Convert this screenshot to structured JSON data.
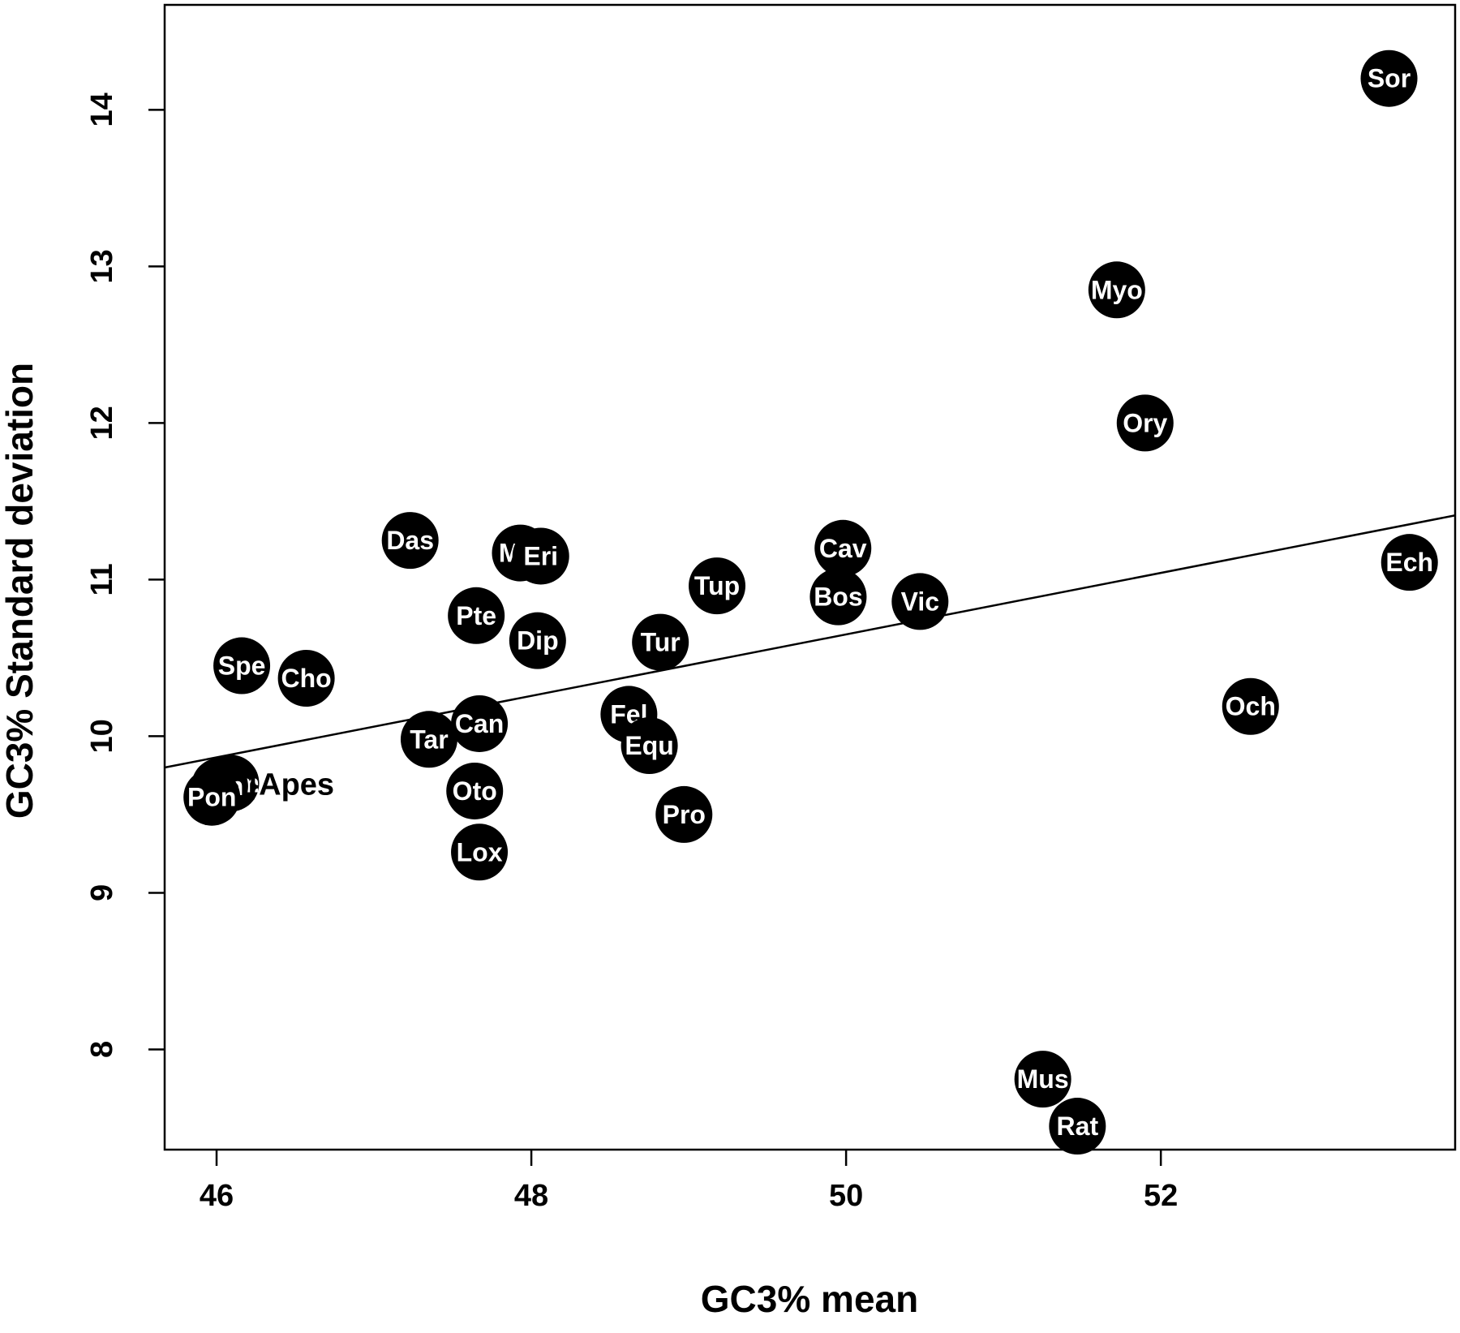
{
  "chart_data": {
    "type": "scatter",
    "title": "",
    "xlabel": "GC3% mean",
    "ylabel": "GC3% Standard deviation",
    "xlim": [
      45.67,
      53.87
    ],
    "ylim": [
      7.36,
      14.67
    ],
    "x_ticks": [
      46,
      48,
      50,
      52
    ],
    "y_ticks": [
      8,
      9,
      10,
      11,
      12,
      13,
      14
    ],
    "grid": false,
    "legend": "none",
    "point_color": "#000000",
    "label_color": "#ffffff",
    "points": [
      {
        "label": "Sor",
        "x": 53.45,
        "y": 14.2
      },
      {
        "label": "Myo",
        "x": 51.72,
        "y": 12.85
      },
      {
        "label": "Ory",
        "x": 51.9,
        "y": 12.0
      },
      {
        "label": "Ech",
        "x": 53.58,
        "y": 11.11
      },
      {
        "label": "Och",
        "x": 52.57,
        "y": 10.19
      },
      {
        "label": "Cav",
        "x": 49.98,
        "y": 11.2
      },
      {
        "label": "Bos",
        "x": 49.95,
        "y": 10.89
      },
      {
        "label": "Vic",
        "x": 50.47,
        "y": 10.86
      },
      {
        "label": "Tup",
        "x": 49.18,
        "y": 10.96
      },
      {
        "label": "Tur",
        "x": 48.82,
        "y": 10.6
      },
      {
        "label": "Fel",
        "x": 48.62,
        "y": 10.14
      },
      {
        "label": "Equ",
        "x": 48.75,
        "y": 9.94
      },
      {
        "label": "Pro",
        "x": 48.97,
        "y": 9.5
      },
      {
        "label": "Das",
        "x": 47.23,
        "y": 11.25
      },
      {
        "label": "Mic",
        "x": 47.93,
        "y": 11.17
      },
      {
        "label": "Eri",
        "x": 48.06,
        "y": 11.15
      },
      {
        "label": "Pte",
        "x": 47.65,
        "y": 10.77
      },
      {
        "label": "Dip",
        "x": 48.04,
        "y": 10.61
      },
      {
        "label": "Can",
        "x": 47.67,
        "y": 10.08
      },
      {
        "label": "Tar",
        "x": 47.35,
        "y": 9.98
      },
      {
        "label": "Oto",
        "x": 47.64,
        "y": 9.65
      },
      {
        "label": "Lox",
        "x": 47.67,
        "y": 9.26
      },
      {
        "label": "Spe",
        "x": 46.16,
        "y": 10.45
      },
      {
        "label": "Cho",
        "x": 46.57,
        "y": 10.37
      },
      {
        "label": "Hom",
        "x": 46.09,
        "y": 9.7
      },
      {
        "label": "Pan",
        "x": 46.02,
        "y": 9.68
      },
      {
        "label": "Pon",
        "x": 45.97,
        "y": 9.61
      },
      {
        "label": "Mus",
        "x": 51.25,
        "y": 7.81
      },
      {
        "label": "Rat",
        "x": 51.47,
        "y": 7.51
      }
    ],
    "regression_line": {
      "x": [
        45.67,
        53.87
      ],
      "y": [
        9.8,
        11.41
      ]
    },
    "annotations": [
      {
        "text": "}Apes",
        "x": 46.47,
        "y": 9.7
      }
    ]
  }
}
